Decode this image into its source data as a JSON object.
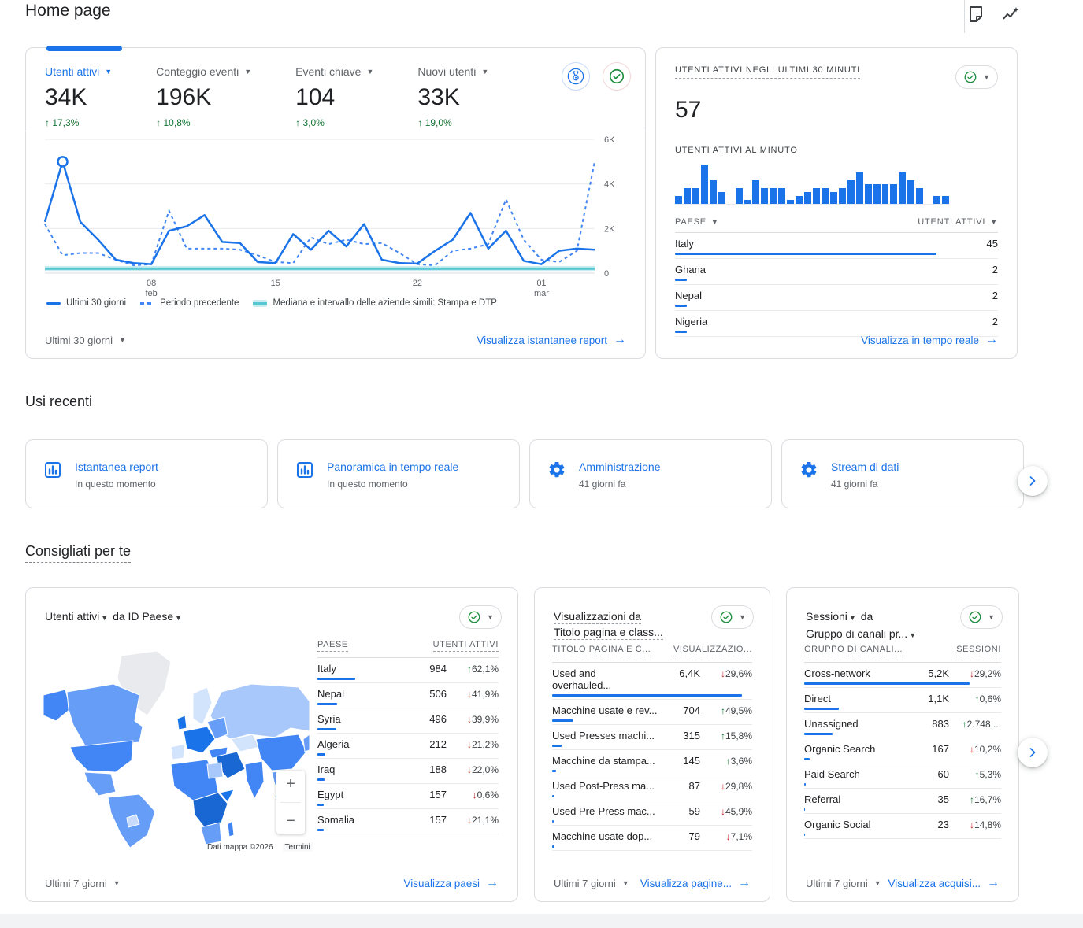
{
  "page": {
    "title": "Home page"
  },
  "colors": {
    "accent": "#1a73e8",
    "dashed_line": "#4285f4",
    "up": "#137333",
    "down": "#c5221f",
    "median_line": "#57c7d4",
    "median_band": "#c8ecf1",
    "bar_blue": "#1a73e8"
  },
  "header": {
    "icons": [
      {
        "name": "note-icon"
      },
      {
        "name": "insights-icon"
      }
    ]
  },
  "overview": {
    "metrics": [
      {
        "label": "Utenti attivi",
        "value": "34K",
        "delta": "17,3%",
        "direction": "up",
        "selected": true
      },
      {
        "label": "Conteggio eventi",
        "value": "196K",
        "delta": "10,8%",
        "direction": "up",
        "selected": false
      },
      {
        "label": "Eventi chiave",
        "value": "104",
        "delta": "3,0%",
        "direction": "up",
        "selected": false
      },
      {
        "label": "Nuovi utenti",
        "value": "33K",
        "delta": "19,0%",
        "direction": "up",
        "selected": false
      }
    ],
    "icons": [
      {
        "name": "benchmarking-icon"
      },
      {
        "name": "data-quality-check-icon"
      }
    ],
    "chart_data": {
      "type": "line",
      "ylim": [
        0,
        6000
      ],
      "yticks": [
        {
          "label": "6K",
          "value": 6000
        },
        {
          "label": "4K",
          "value": 4000
        },
        {
          "label": "2K",
          "value": 2000
        },
        {
          "label": "0",
          "value": 0
        }
      ],
      "xticks": [
        {
          "label": "08",
          "sub": "feb",
          "index": 6
        },
        {
          "label": "15",
          "sub": "",
          "index": 13
        },
        {
          "label": "22",
          "sub": "",
          "index": 21
        },
        {
          "label": "01",
          "sub": "mar",
          "index": 28
        }
      ],
      "series": [
        {
          "name": "Ultimi 30 giorni",
          "style": "solid",
          "values": [
            2300,
            5000,
            2300,
            1500,
            600,
            450,
            400,
            1900,
            2100,
            2600,
            1400,
            1350,
            500,
            450,
            1750,
            1050,
            1900,
            1200,
            2200,
            600,
            450,
            430,
            1000,
            1500,
            2700,
            1100,
            1900,
            550,
            400,
            1000,
            1100,
            1050
          ]
        },
        {
          "name": "Periodo precedente",
          "style": "dashed",
          "values": [
            2200,
            800,
            900,
            900,
            600,
            350,
            400,
            2800,
            1100,
            1100,
            1100,
            1050,
            800,
            500,
            450,
            1600,
            1300,
            1500,
            1300,
            1350,
            900,
            400,
            350,
            1000,
            1100,
            1300,
            3300,
            1500,
            600,
            500,
            1000,
            5000
          ]
        },
        {
          "name": "Mediana e intervallo delle aziende simili: Stampa e DTP",
          "style": "band",
          "constant": 200,
          "band": [
            100,
            320
          ]
        }
      ],
      "marker": {
        "series": 0,
        "index": 1
      }
    },
    "range_label": "Ultimi 30 giorni",
    "link_label": "Visualizza istantanee report"
  },
  "realtime": {
    "title": "UTENTI ATTIVI NEGLI ULTIMI 30 MINUTI",
    "value": "57",
    "subtitle": "UTENTI ATTIVI AL MINUTO",
    "chart_data": {
      "type": "bar",
      "ymax": 5,
      "values": [
        1,
        2,
        2,
        5,
        3,
        1.5,
        0,
        2,
        0.5,
        3,
        2,
        2,
        2,
        0.5,
        1,
        1.5,
        2,
        2,
        1.5,
        2,
        3,
        4,
        2.5,
        2.5,
        2.5,
        2.5,
        4,
        3,
        2,
        0,
        1,
        1
      ]
    },
    "table": {
      "headers": [
        "PAESE",
        "UTENTI ATTIVI"
      ],
      "rows": [
        {
          "name": "Italy",
          "value": 45,
          "display": "45"
        },
        {
          "name": "Ghana",
          "value": 2,
          "display": "2"
        },
        {
          "name": "Nepal",
          "value": 2,
          "display": "2"
        },
        {
          "name": "Nigeria",
          "value": 2,
          "display": "2"
        }
      ]
    },
    "link_label": "Visualizza in tempo reale"
  },
  "recent": {
    "heading": "Usi recenti",
    "cards": [
      {
        "icon": "bar-chart-icon",
        "label": "Istantanea report",
        "sub": "In questo momento"
      },
      {
        "icon": "bar-chart-icon",
        "label": "Panoramica in tempo reale",
        "sub": "In questo momento"
      },
      {
        "icon": "gear-icon",
        "label": "Amministrazione",
        "sub": "41 giorni fa"
      },
      {
        "icon": "gear-icon",
        "label": "Stream di dati",
        "sub": "41 giorni fa"
      }
    ]
  },
  "suggested": {
    "heading": "Consigliati per te",
    "map_card": {
      "title_metric": "Utenti attivi",
      "title_mid": "da",
      "title_dim": "ID Paese",
      "headers": [
        "PAESE",
        "UTENTI ATTIVI"
      ],
      "chart_data": {
        "type": "table",
        "rows": [
          {
            "name": "Italy",
            "value": 984,
            "display": "984",
            "delta": "62,1%",
            "direction": "up"
          },
          {
            "name": "Nepal",
            "value": 506,
            "display": "506",
            "delta": "41,9%",
            "direction": "down"
          },
          {
            "name": "Syria",
            "value": 496,
            "display": "496",
            "delta": "39,9%",
            "direction": "down"
          },
          {
            "name": "Algeria",
            "value": 212,
            "display": "212",
            "delta": "21,2%",
            "direction": "down"
          },
          {
            "name": "Iraq",
            "value": 188,
            "display": "188",
            "delta": "22,0%",
            "direction": "down"
          },
          {
            "name": "Egypt",
            "value": 157,
            "display": "157",
            "delta": "0,6%",
            "direction": "down"
          },
          {
            "name": "Somalia",
            "value": 157,
            "display": "157",
            "delta": "21,1%",
            "direction": "down"
          }
        ]
      },
      "map_attribution": "Dati mappa ©2026",
      "map_terms": "Termini",
      "zoom_in": "+",
      "zoom_out": "−",
      "range_label": "Ultimi 7 giorni",
      "link_label": "Visualizza paesi"
    },
    "pages_card": {
      "title_line1": "Visualizzazioni da",
      "title_line2": "Titolo pagina e class...",
      "headers": [
        "TITOLO PAGINA E C...",
        "VISUALIZZAZIO..."
      ],
      "chart_data": {
        "type": "table",
        "rows": [
          {
            "name": "Used and overhauled...",
            "value": 6400,
            "display": "6,4K",
            "delta": "29,6%",
            "direction": "down"
          },
          {
            "name": "Macchine usate e rev...",
            "value": 704,
            "display": "704",
            "delta": "49,5%",
            "direction": "up"
          },
          {
            "name": "Used Presses machi...",
            "value": 315,
            "display": "315",
            "delta": "15,8%",
            "direction": "up"
          },
          {
            "name": "Macchine da stampa...",
            "value": 145,
            "display": "145",
            "delta": "3,6%",
            "direction": "up"
          },
          {
            "name": "Used Post-Press ma...",
            "value": 87,
            "display": "87",
            "delta": "29,8%",
            "direction": "down"
          },
          {
            "name": "Used Pre-Press mac...",
            "value": 59,
            "display": "59",
            "delta": "45,9%",
            "direction": "down"
          },
          {
            "name": "Macchine usate dop...",
            "value": 79,
            "display": "79",
            "delta": "7,1%",
            "direction": "down"
          }
        ]
      },
      "range_label": "Ultimi 7 giorni",
      "link_label": "Visualizza pagine..."
    },
    "channels_card": {
      "title_metric": "Sessioni",
      "title_mid": "da",
      "title_dim": "Gruppo di canali pr...",
      "headers": [
        "GRUPPO DI CANALI...",
        "SESSIONI"
      ],
      "chart_data": {
        "type": "table",
        "rows": [
          {
            "name": "Cross-network",
            "value": 5200,
            "display": "5,2K",
            "delta": "29,2%",
            "direction": "down"
          },
          {
            "name": "Direct",
            "value": 1100,
            "display": "1,1K",
            "delta": "0,6%",
            "direction": "up"
          },
          {
            "name": "Unassigned",
            "value": 883,
            "display": "883",
            "delta": "2.748,...",
            "direction": "up"
          },
          {
            "name": "Organic Search",
            "value": 167,
            "display": "167",
            "delta": "10,2%",
            "direction": "down"
          },
          {
            "name": "Paid Search",
            "value": 60,
            "display": "60",
            "delta": "5,3%",
            "direction": "up"
          },
          {
            "name": "Referral",
            "value": 35,
            "display": "35",
            "delta": "16,7%",
            "direction": "up"
          },
          {
            "name": "Organic Social",
            "value": 23,
            "display": "23",
            "delta": "14,8%",
            "direction": "down"
          }
        ]
      },
      "range_label": "Ultimi 7 giorni",
      "link_label": "Visualizza acquisi..."
    }
  }
}
